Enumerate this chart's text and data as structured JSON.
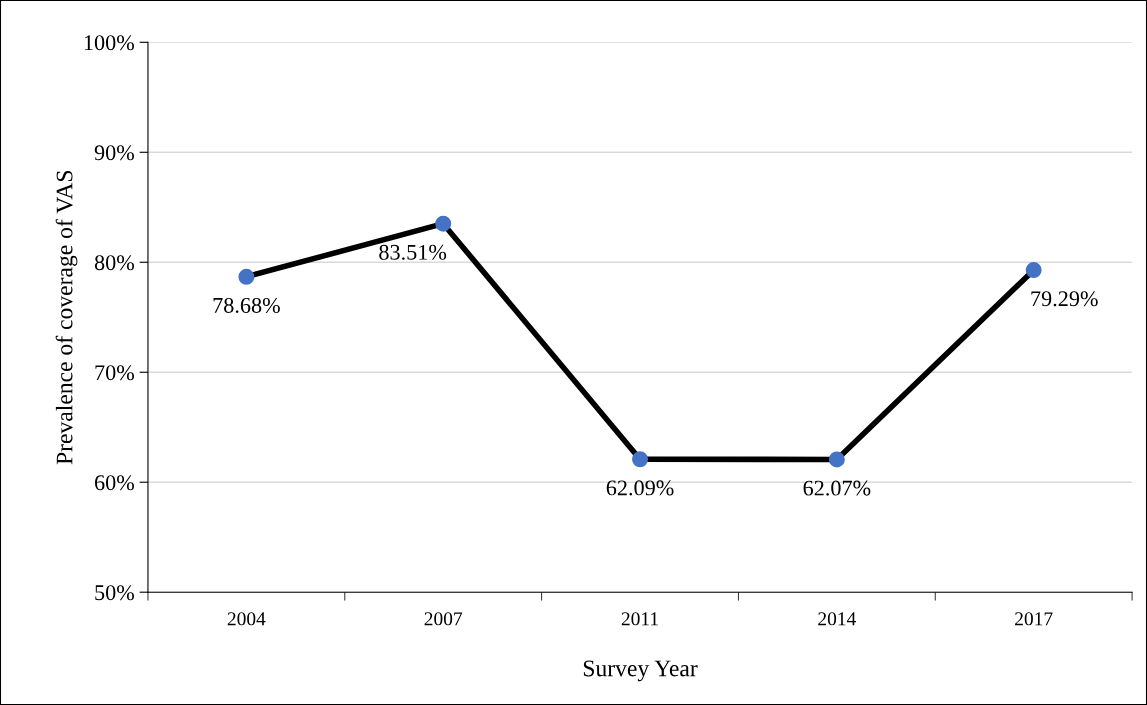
{
  "chart_data": {
    "type": "line",
    "xlabel": "Survey Year",
    "ylabel": "Prevalence of coverage of VAS",
    "categories": [
      "2004",
      "2007",
      "2011",
      "2014",
      "2017"
    ],
    "series": [
      {
        "color": "#000000",
        "colors": [
          "#4472c4",
          "#4472c4",
          "#4472c4",
          "#4472c4",
          "#4472c4"
        ],
        "values": [
          78.68,
          83.51,
          62.09,
          62.07,
          79.29
        ],
        "value_labels": [
          "78.68%",
          "83.51%",
          "62.09%",
          "62.07%",
          "79.29%"
        ]
      }
    ],
    "ylim": [
      50,
      100
    ],
    "yticks": [
      {
        "value": 50,
        "label": "50%"
      },
      {
        "value": 60,
        "label": "60%"
      },
      {
        "value": 70,
        "label": "70%"
      },
      {
        "value": 80,
        "label": "80%"
      },
      {
        "value": 90,
        "label": "90%"
      },
      {
        "value": 100,
        "label": "100%"
      }
    ],
    "grid": "y",
    "marker": "circle",
    "line_style": "solid"
  }
}
